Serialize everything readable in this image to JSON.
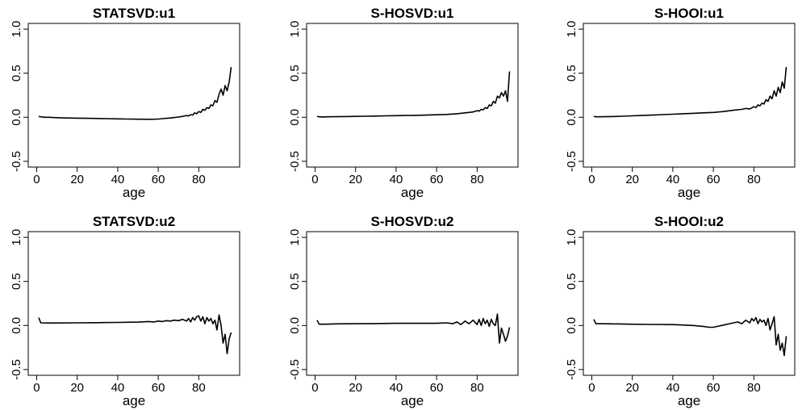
{
  "chart_data": [
    {
      "type": "line",
      "title": "STATSVD:u1",
      "xlabel": "age",
      "ylabel": "",
      "xlim": [
        0,
        96
      ],
      "ylim": [
        -0.5,
        1.0
      ],
      "xticks": [
        0,
        20,
        40,
        60,
        80
      ],
      "yticks": [
        "-0.5",
        "0.0",
        "0.5",
        "1.0"
      ],
      "grid": false,
      "x": [
        1,
        2,
        4,
        6,
        10,
        15,
        20,
        25,
        30,
        35,
        40,
        45,
        50,
        55,
        58,
        60,
        62,
        64,
        66,
        68,
        70,
        72,
        74,
        75,
        76,
        77,
        78,
        79,
        80,
        81,
        82,
        83,
        84,
        85,
        86,
        87,
        88,
        89,
        90,
        91,
        92,
        93,
        94,
        95,
        96
      ],
      "values": [
        0.01,
        0.005,
        0.0,
        0.0,
        -0.005,
        -0.008,
        -0.01,
        -0.012,
        -0.014,
        -0.016,
        -0.018,
        -0.02,
        -0.022,
        -0.023,
        -0.022,
        -0.02,
        -0.016,
        -0.012,
        -0.008,
        -0.003,
        0.003,
        0.01,
        0.02,
        0.015,
        0.03,
        0.025,
        0.05,
        0.04,
        0.065,
        0.055,
        0.09,
        0.08,
        0.11,
        0.1,
        0.14,
        0.13,
        0.19,
        0.17,
        0.26,
        0.32,
        0.25,
        0.36,
        0.3,
        0.4,
        0.57
      ]
    },
    {
      "type": "line",
      "title": "S-HOSVD:u1",
      "xlabel": "age",
      "ylabel": "",
      "xlim": [
        0,
        96
      ],
      "ylim": [
        -0.5,
        1.0
      ],
      "xticks": [
        0,
        20,
        40,
        60,
        80
      ],
      "yticks": [
        "-0.5",
        "0.0",
        "0.5",
        "1.0"
      ],
      "grid": false,
      "x": [
        1,
        2,
        4,
        6,
        10,
        15,
        20,
        25,
        30,
        35,
        40,
        45,
        50,
        55,
        60,
        65,
        70,
        72,
        74,
        76,
        78,
        80,
        81,
        82,
        83,
        84,
        85,
        86,
        87,
        88,
        89,
        90,
        91,
        92,
        93,
        94,
        95,
        96
      ],
      "values": [
        0.01,
        0.005,
        0.004,
        0.005,
        0.006,
        0.008,
        0.01,
        0.012,
        0.014,
        0.016,
        0.018,
        0.02,
        0.022,
        0.025,
        0.028,
        0.032,
        0.04,
        0.045,
        0.05,
        0.055,
        0.06,
        0.075,
        0.07,
        0.09,
        0.085,
        0.11,
        0.1,
        0.14,
        0.13,
        0.18,
        0.16,
        0.24,
        0.22,
        0.28,
        0.24,
        0.3,
        0.18,
        0.52
      ]
    },
    {
      "type": "line",
      "title": "S-HOOI:u1",
      "xlabel": "age",
      "ylabel": "",
      "xlim": [
        0,
        96
      ],
      "ylim": [
        -0.5,
        1.0
      ],
      "xticks": [
        0,
        20,
        40,
        60,
        80
      ],
      "yticks": [
        "-0.5",
        "0.0",
        "0.5",
        "1.0"
      ],
      "grid": false,
      "x": [
        1,
        2,
        4,
        6,
        10,
        15,
        20,
        25,
        30,
        35,
        40,
        45,
        50,
        55,
        60,
        65,
        70,
        72,
        74,
        76,
        78,
        80,
        81,
        82,
        83,
        84,
        85,
        86,
        87,
        88,
        89,
        90,
        91,
        92,
        93,
        94,
        95,
        96
      ],
      "values": [
        0.01,
        0.005,
        0.005,
        0.006,
        0.008,
        0.012,
        0.016,
        0.02,
        0.025,
        0.03,
        0.035,
        0.04,
        0.045,
        0.05,
        0.055,
        0.065,
        0.08,
        0.085,
        0.09,
        0.1,
        0.095,
        0.12,
        0.11,
        0.14,
        0.13,
        0.16,
        0.15,
        0.2,
        0.18,
        0.24,
        0.21,
        0.3,
        0.24,
        0.34,
        0.28,
        0.4,
        0.33,
        0.57
      ]
    },
    {
      "type": "line",
      "title": "STATSVD:u2",
      "xlabel": "age",
      "ylabel": "",
      "xlim": [
        0,
        96
      ],
      "ylim": [
        -0.5,
        1.0
      ],
      "xticks": [
        0,
        20,
        40,
        60,
        80
      ],
      "yticks": [
        "-0.5",
        "0.0",
        "0.5",
        "1.0"
      ],
      "grid": false,
      "x": [
        1,
        2,
        5,
        10,
        20,
        30,
        40,
        50,
        55,
        58,
        60,
        62,
        64,
        66,
        68,
        70,
        72,
        74,
        75,
        76,
        77,
        78,
        79,
        80,
        81,
        82,
        83,
        84,
        85,
        86,
        87,
        88,
        89,
        90,
        91,
        92,
        93,
        94,
        95,
        96
      ],
      "values": [
        0.09,
        0.03,
        0.028,
        0.028,
        0.03,
        0.032,
        0.035,
        0.038,
        0.045,
        0.04,
        0.05,
        0.045,
        0.055,
        0.05,
        0.06,
        0.055,
        0.07,
        0.05,
        0.08,
        0.04,
        0.09,
        0.06,
        0.1,
        0.11,
        0.05,
        0.1,
        0.02,
        0.09,
        0.05,
        0.08,
        0.02,
        0.06,
        -0.05,
        0.12,
        0.0,
        -0.2,
        -0.1,
        -0.32,
        -0.15,
        -0.08
      ]
    },
    {
      "type": "line",
      "title": "S-HOSVD:u2",
      "xlabel": "age",
      "ylabel": "",
      "xlim": [
        0,
        96
      ],
      "ylim": [
        -0.5,
        1.0
      ],
      "xticks": [
        0,
        20,
        40,
        60,
        80
      ],
      "yticks": [
        "-0.5",
        "0.0",
        "0.5",
        "1.0"
      ],
      "grid": false,
      "x": [
        1,
        2,
        5,
        10,
        20,
        30,
        40,
        50,
        60,
        65,
        68,
        70,
        72,
        74,
        76,
        78,
        80,
        81,
        82,
        83,
        84,
        85,
        86,
        87,
        88,
        89,
        90,
        91,
        92,
        93,
        94,
        95,
        96
      ],
      "values": [
        0.06,
        0.015,
        0.015,
        0.018,
        0.02,
        0.022,
        0.025,
        0.025,
        0.025,
        0.03,
        0.02,
        0.04,
        0.01,
        0.05,
        0.02,
        0.06,
        0.01,
        0.07,
        0.0,
        0.08,
        0.02,
        0.06,
        -0.01,
        0.07,
        0.02,
        0.0,
        0.13,
        -0.2,
        -0.03,
        -0.1,
        -0.18,
        -0.12,
        -0.02
      ]
    },
    {
      "type": "line",
      "title": "S-HOOI:u2",
      "xlabel": "age",
      "ylabel": "",
      "xlim": [
        0,
        96
      ],
      "ylim": [
        -0.5,
        1.0
      ],
      "xticks": [
        0,
        20,
        40,
        60,
        80
      ],
      "yticks": [
        "-0.5",
        "0.0",
        "0.5",
        "1.0"
      ],
      "grid": false,
      "x": [
        1,
        2,
        5,
        10,
        20,
        30,
        40,
        45,
        50,
        55,
        58,
        60,
        62,
        64,
        66,
        68,
        70,
        72,
        74,
        76,
        78,
        79,
        80,
        81,
        82,
        83,
        84,
        85,
        86,
        87,
        88,
        89,
        90,
        91,
        92,
        93,
        94,
        95,
        96
      ],
      "values": [
        0.07,
        0.02,
        0.02,
        0.018,
        0.015,
        0.012,
        0.01,
        0.005,
        0.0,
        -0.01,
        -0.02,
        -0.02,
        -0.01,
        0.0,
        0.01,
        0.02,
        0.03,
        0.04,
        0.02,
        0.06,
        0.03,
        0.08,
        0.05,
        0.09,
        0.02,
        0.07,
        0.04,
        0.06,
        0.0,
        0.08,
        -0.05,
        0.02,
        0.1,
        -0.22,
        -0.1,
        -0.28,
        -0.2,
        -0.34,
        -0.12
      ]
    }
  ]
}
